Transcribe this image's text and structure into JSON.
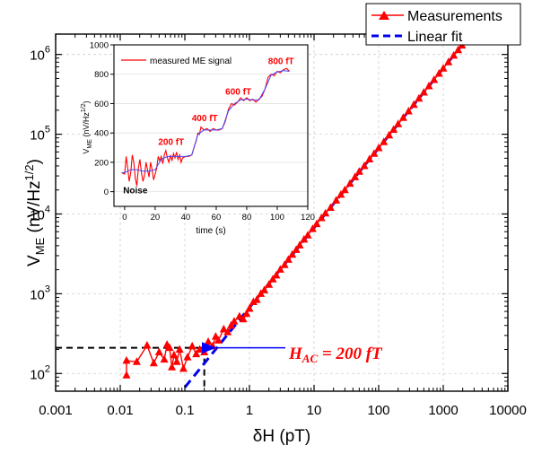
{
  "chart_data": [
    {
      "type": "scatter",
      "scale": "log-log",
      "xlabel": "δH (pT)",
      "ylabel_main": "V",
      "ylabel_sub": "ME",
      "ylabel_tail": " (nV/Hz",
      "ylabel_exp": "1/2",
      "ylabel_close": ")",
      "xlim": [
        0.001,
        10000
      ],
      "ylim": [
        60,
        1800000
      ],
      "x_ticks": [
        {
          "v": 0.001,
          "label": "0.001"
        },
        {
          "v": 0.01,
          "label": "0.01"
        },
        {
          "v": 0.1,
          "label": "0.1"
        },
        {
          "v": 1,
          "label": "1"
        },
        {
          "v": 10,
          "label": "10"
        },
        {
          "v": 100,
          "label": "100"
        },
        {
          "v": 1000,
          "label": "1000"
        },
        {
          "v": 10000,
          "label": "10000"
        }
      ],
      "y_ticks": [
        {
          "v": 100,
          "base": "10",
          "exp": "2"
        },
        {
          "v": 1000,
          "base": "10",
          "exp": "3"
        },
        {
          "v": 10000,
          "base": "10",
          "exp": "4"
        },
        {
          "v": 100000,
          "base": "10",
          "exp": "5"
        },
        {
          "v": 1000000,
          "base": "10",
          "exp": "6"
        }
      ],
      "grid": true,
      "legend": "top-right",
      "series": [
        {
          "name": "Measurements",
          "color": "#ff0000",
          "marker": "triangle",
          "points": [
            [
              0.0125,
              95
            ],
            [
              0.0125,
              145
            ],
            [
              0.018,
              140
            ],
            [
              0.026,
              225
            ],
            [
              0.033,
              135
            ],
            [
              0.04,
              185
            ],
            [
              0.048,
              150
            ],
            [
              0.053,
              230
            ],
            [
              0.058,
              210
            ],
            [
              0.063,
              120
            ],
            [
              0.068,
              170
            ],
            [
              0.075,
              140
            ],
            [
              0.083,
              200
            ],
            [
              0.095,
              115
            ],
            [
              0.11,
              160
            ],
            [
              0.13,
              220
            ],
            [
              0.15,
              175
            ],
            [
              0.17,
              200
            ],
            [
              0.2,
              185
            ],
            [
              0.23,
              250
            ],
            [
              0.27,
              220
            ],
            [
              0.3,
              290
            ],
            [
              0.33,
              260
            ],
            [
              0.4,
              360
            ],
            [
              0.46,
              330
            ],
            [
              0.52,
              400
            ],
            [
              0.58,
              450
            ],
            [
              0.7,
              520
            ],
            [
              0.8,
              480
            ],
            [
              0.9,
              560
            ],
            [
              1.0,
              650
            ],
            [
              1.15,
              790
            ],
            [
              1.3,
              840
            ],
            [
              1.5,
              1000
            ],
            [
              1.7,
              1110
            ],
            [
              2.0,
              1300
            ],
            [
              2.3,
              1520
            ],
            [
              2.6,
              1700
            ],
            [
              3.0,
              2010
            ],
            [
              3.5,
              2300
            ],
            [
              4.0,
              2680
            ],
            [
              4.6,
              3100
            ],
            [
              5.3,
              3560
            ],
            [
              6.0,
              4050
            ],
            [
              7.0,
              4800
            ],
            [
              8.0,
              5400
            ],
            [
              9.5,
              6500
            ],
            [
              11,
              7500
            ],
            [
              13,
              8900
            ],
            [
              15,
              10200
            ],
            [
              18,
              12000
            ],
            [
              22,
              14800
            ],
            [
              26,
              17500
            ],
            [
              30,
              20000
            ],
            [
              36,
              24000
            ],
            [
              43,
              29000
            ],
            [
              50,
              34000
            ],
            [
              60,
              40000
            ],
            [
              72,
              48500
            ],
            [
              85,
              57000
            ],
            [
              100,
              67000
            ],
            [
              120,
              80000
            ],
            [
              145,
              97000
            ],
            [
              170,
              114000
            ],
            [
              200,
              134000
            ],
            [
              240,
              161000
            ],
            [
              290,
              194000
            ],
            [
              350,
              234000
            ],
            [
              420,
              281000
            ],
            [
              500,
              334000
            ],
            [
              600,
              401000
            ],
            [
              720,
              481000
            ],
            [
              860,
              575000
            ],
            [
              1000,
              668000
            ],
            [
              1200,
              802000
            ],
            [
              1450,
              969000
            ],
            [
              1700,
              1136000
            ],
            [
              1950,
              1300000
            ]
          ]
        },
        {
          "name": "Linear fit",
          "color": "#0000ee",
          "style": "dashed",
          "points": [
            [
              0.1,
              67
            ],
            [
              2000,
              1340000
            ]
          ]
        }
      ],
      "annotation": {
        "text_main": "H",
        "text_sub": "AC",
        "text_tail": " = 200 fT",
        "color": "#ff0000",
        "arrow_color": "#0000ff",
        "point": [
          0.2,
          210
        ]
      },
      "reference_lines": {
        "x": 0.2,
        "y": 210,
        "color": "#000000"
      }
    },
    {
      "type": "line",
      "title_inset": true,
      "xlabel": "time (s)",
      "ylabel_main": "V",
      "ylabel_sub": "ME",
      "ylabel_tail": " (nV/Hz",
      "ylabel_exp": "1/2",
      "ylabel_close": ")",
      "xlim": [
        -7,
        120
      ],
      "ylim": [
        -100,
        1000
      ],
      "x_ticks": [
        0,
        20,
        40,
        60,
        80,
        100,
        120
      ],
      "y_ticks": [
        0,
        200,
        400,
        600,
        800,
        1000
      ],
      "legend": "top-left",
      "series": [
        {
          "name": "measured ME signal",
          "color": "#ff0000",
          "points": [
            [
              -2,
              130
            ],
            [
              0,
              120
            ],
            [
              1,
              240
            ],
            [
              2,
              160
            ],
            [
              3,
              70
            ],
            [
              4,
              130
            ],
            [
              5,
              250
            ],
            [
              6,
              200
            ],
            [
              7,
              90
            ],
            [
              8,
              40
            ],
            [
              9,
              160
            ],
            [
              10,
              220
            ],
            [
              11,
              130
            ],
            [
              12,
              70
            ],
            [
              13,
              110
            ],
            [
              14,
              200
            ],
            [
              15,
              150
            ],
            [
              16,
              100
            ],
            [
              17,
              200
            ],
            [
              18,
              150
            ],
            [
              19,
              80
            ],
            [
              20,
              120
            ],
            [
              21,
              160
            ],
            [
              22,
              240
            ],
            [
              23,
              210
            ],
            [
              24,
              240
            ],
            [
              25,
              190
            ],
            [
              26,
              250
            ],
            [
              27,
              280
            ],
            [
              28,
              230
            ],
            [
              29,
              200
            ],
            [
              30,
              250
            ],
            [
              31,
              210
            ],
            [
              32,
              260
            ],
            [
              33,
              230
            ],
            [
              34,
              270
            ],
            [
              35,
              220
            ],
            [
              36,
              250
            ],
            [
              37,
              200
            ],
            [
              38,
              230
            ],
            [
              40,
              240
            ],
            [
              42,
              240
            ],
            [
              44,
              250
            ],
            [
              46,
              320
            ],
            [
              47,
              350
            ],
            [
              48,
              400
            ],
            [
              49,
              390
            ],
            [
              50,
              440
            ],
            [
              52,
              420
            ],
            [
              54,
              430
            ],
            [
              56,
              410
            ],
            [
              58,
              430
            ],
            [
              60,
              420
            ],
            [
              62,
              420
            ],
            [
              64,
              430
            ],
            [
              66,
              480
            ],
            [
              68,
              560
            ],
            [
              70,
              600
            ],
            [
              72,
              590
            ],
            [
              74,
              610
            ],
            [
              76,
              640
            ],
            [
              78,
              620
            ],
            [
              80,
              640
            ],
            [
              82,
              620
            ],
            [
              84,
              630
            ],
            [
              86,
              610
            ],
            [
              88,
              630
            ],
            [
              90,
              650
            ],
            [
              92,
              700
            ],
            [
              94,
              780
            ],
            [
              96,
              800
            ],
            [
              98,
              790
            ],
            [
              100,
              820
            ],
            [
              102,
              810
            ],
            [
              104,
              830
            ],
            [
              106,
              840
            ],
            [
              108,
              820
            ]
          ]
        },
        {
          "name": "",
          "color": "#4444ff",
          "points": [
            [
              -2,
              130
            ],
            [
              0,
              130
            ],
            [
              4,
              150
            ],
            [
              8,
              150
            ],
            [
              12,
              140
            ],
            [
              16,
              140
            ],
            [
              20,
              150
            ],
            [
              24,
              220
            ],
            [
              28,
              240
            ],
            [
              32,
              240
            ],
            [
              36,
              240
            ],
            [
              40,
              240
            ],
            [
              44,
              250
            ],
            [
              48,
              390
            ],
            [
              52,
              420
            ],
            [
              56,
              420
            ],
            [
              60,
              420
            ],
            [
              64,
              430
            ],
            [
              68,
              550
            ],
            [
              72,
              600
            ],
            [
              76,
              625
            ],
            [
              80,
              630
            ],
            [
              84,
              625
            ],
            [
              88,
              625
            ],
            [
              92,
              700
            ],
            [
              96,
              795
            ],
            [
              100,
              815
            ],
            [
              104,
              825
            ],
            [
              108,
              820
            ]
          ]
        }
      ],
      "labels": [
        {
          "text": "Noise",
          "x": -1,
          "y": -10,
          "color": "#000000"
        },
        {
          "text": "200 fT",
          "x": 22,
          "y": 320,
          "color": "#ff0000"
        },
        {
          "text": "400 fT",
          "x": 44,
          "y": 480,
          "color": "#ff0000"
        },
        {
          "text": "600 fT",
          "x": 66,
          "y": 660,
          "color": "#ff0000"
        },
        {
          "text": "800 fT",
          "x": 94,
          "y": 870,
          "color": "#ff0000"
        }
      ]
    }
  ]
}
